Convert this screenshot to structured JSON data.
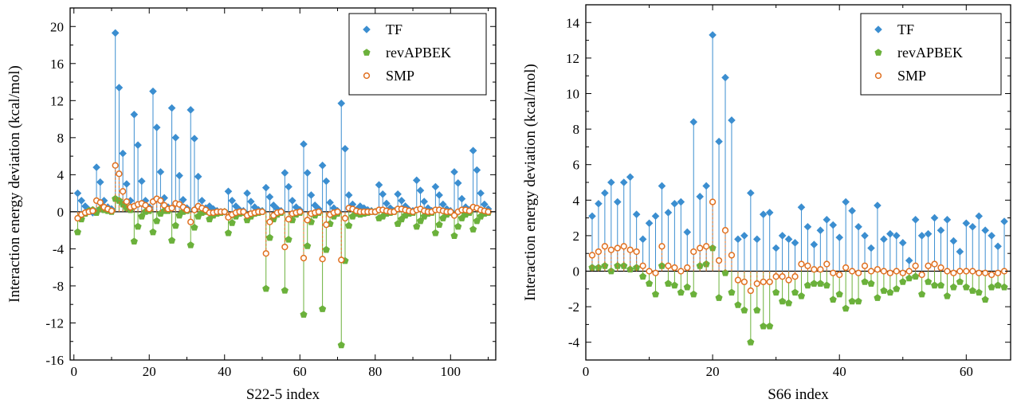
{
  "chart_data": [
    {
      "type": "scatter",
      "xlabel": "S22-5 index",
      "ylabel": "Interaction energy deviation (kcal/mol)",
      "xlim": [
        -1,
        112
      ],
      "ylim": [
        -16,
        22
      ],
      "xticks": [
        0,
        20,
        40,
        60,
        80,
        100
      ],
      "yticks": [
        -16,
        -12,
        -8,
        -4,
        0,
        4,
        8,
        12,
        16,
        20
      ],
      "legend_position": "top-right",
      "grid": false,
      "zero_line": true,
      "series": [
        {
          "name": "TF",
          "marker": "diamond",
          "color": "#3b8ed0",
          "stem": "solid",
          "x": [
            1,
            2,
            3,
            4,
            5,
            6,
            7,
            8,
            9,
            10,
            11,
            12,
            13,
            14,
            15,
            16,
            17,
            18,
            19,
            20,
            21,
            22,
            23,
            24,
            25,
            26,
            27,
            28,
            29,
            30,
            31,
            32,
            33,
            34,
            35,
            36,
            37,
            38,
            39,
            40,
            41,
            42,
            43,
            44,
            45,
            46,
            47,
            48,
            49,
            50,
            51,
            52,
            53,
            54,
            55,
            56,
            57,
            58,
            59,
            60,
            61,
            62,
            63,
            64,
            65,
            66,
            67,
            68,
            69,
            70,
            71,
            72,
            73,
            74,
            75,
            76,
            77,
            78,
            79,
            80,
            81,
            82,
            83,
            84,
            85,
            86,
            87,
            88,
            89,
            90,
            91,
            92,
            93,
            94,
            95,
            96,
            97,
            98,
            99,
            100,
            101,
            102,
            103,
            104,
            105,
            106,
            107,
            108,
            109,
            110
          ],
          "y": [
            2.0,
            1.2,
            0.6,
            0.2,
            -0.1,
            4.8,
            3.2,
            1.2,
            0.5,
            0.3,
            19.3,
            13.4,
            6.3,
            3.0,
            1.2,
            10.5,
            7.2,
            3.3,
            1.2,
            0.5,
            13.0,
            9.1,
            4.3,
            1.5,
            0.5,
            11.2,
            8.0,
            3.9,
            1.3,
            0.4,
            11.0,
            7.9,
            3.8,
            1.2,
            0.4,
            0.6,
            0.3,
            0.1,
            0.0,
            0.0,
            2.2,
            1.2,
            0.6,
            0.2,
            0.1,
            2.0,
            1.1,
            0.5,
            0.2,
            0.1,
            2.6,
            1.6,
            0.7,
            0.3,
            0.1,
            4.2,
            2.7,
            1.2,
            0.5,
            0.2,
            7.3,
            4.2,
            1.8,
            0.7,
            0.3,
            5.0,
            3.3,
            1.0,
            0.4,
            0.1,
            11.7,
            6.8,
            1.8,
            0.8,
            0.2,
            0.6,
            0.4,
            0.2,
            0.1,
            0.0,
            2.9,
            1.9,
            0.9,
            0.4,
            0.1,
            1.9,
            1.2,
            0.6,
            0.2,
            0.1,
            3.4,
            2.3,
            1.1,
            0.4,
            0.1,
            2.7,
            1.8,
            0.8,
            0.3,
            0.1,
            4.3,
            3.1,
            1.4,
            0.5,
            0.2,
            6.6,
            4.5,
            2.0,
            0.8,
            0.3
          ]
        },
        {
          "name": "revAPBEK",
          "marker": "pentagon",
          "color": "#6bb13b",
          "stem": "solid",
          "x": [
            1,
            2,
            3,
            4,
            5,
            6,
            7,
            8,
            9,
            10,
            11,
            12,
            13,
            14,
            15,
            16,
            17,
            18,
            19,
            20,
            21,
            22,
            23,
            24,
            25,
            26,
            27,
            28,
            29,
            30,
            31,
            32,
            33,
            34,
            35,
            36,
            37,
            38,
            39,
            40,
            41,
            42,
            43,
            44,
            45,
            46,
            47,
            48,
            49,
            50,
            51,
            52,
            53,
            54,
            55,
            56,
            57,
            58,
            59,
            60,
            61,
            62,
            63,
            64,
            65,
            66,
            67,
            68,
            69,
            70,
            71,
            72,
            73,
            74,
            75,
            76,
            77,
            78,
            79,
            80,
            81,
            82,
            83,
            84,
            85,
            86,
            87,
            88,
            89,
            90,
            91,
            92,
            93,
            94,
            95,
            96,
            97,
            98,
            99,
            100,
            101,
            102,
            103,
            104,
            105,
            106,
            107,
            108,
            109,
            110
          ],
          "y": [
            -2.2,
            -0.8,
            -0.2,
            0.1,
            0.2,
            -0.1,
            0.3,
            0.2,
            0.1,
            0.0,
            1.4,
            1.2,
            0.8,
            0.4,
            0.2,
            -3.2,
            -1.6,
            -0.5,
            0.0,
            0.1,
            -2.2,
            -1.0,
            -0.2,
            0.1,
            0.1,
            -3.1,
            -1.5,
            -0.4,
            0.0,
            0.1,
            -3.6,
            -1.7,
            -0.5,
            -0.1,
            0.0,
            -0.8,
            -0.4,
            -0.2,
            -0.1,
            0.0,
            -2.3,
            -1.2,
            -0.5,
            -0.2,
            -0.1,
            -0.9,
            -0.5,
            -0.2,
            -0.1,
            0.0,
            -8.3,
            -2.8,
            -0.8,
            -0.3,
            -0.1,
            -8.5,
            -3.0,
            -0.9,
            -0.3,
            -0.1,
            -11.1,
            -3.7,
            -1.1,
            -0.4,
            -0.1,
            -10.5,
            -4.1,
            -1.3,
            -0.5,
            -0.2,
            -14.4,
            -5.3,
            -1.5,
            -0.5,
            -0.2,
            -0.3,
            -0.2,
            -0.1,
            0.0,
            0.0,
            -0.7,
            -0.5,
            -0.2,
            -0.1,
            0.0,
            -1.3,
            -0.8,
            -0.4,
            -0.2,
            -0.1,
            -1.6,
            -1.0,
            -0.5,
            -0.2,
            -0.1,
            -2.3,
            -1.4,
            -0.7,
            -0.3,
            -0.1,
            -2.6,
            -1.6,
            -0.7,
            -0.3,
            -0.1,
            -1.9,
            -1.0,
            -0.5,
            -0.2,
            -0.1
          ]
        },
        {
          "name": "SMP",
          "marker": "circle-open",
          "color": "#e07020",
          "stem": "dashed",
          "x": [
            1,
            2,
            3,
            4,
            5,
            6,
            7,
            8,
            9,
            10,
            11,
            12,
            13,
            14,
            15,
            16,
            17,
            18,
            19,
            20,
            21,
            22,
            23,
            24,
            25,
            26,
            27,
            28,
            29,
            30,
            31,
            32,
            33,
            34,
            35,
            36,
            37,
            38,
            39,
            40,
            41,
            42,
            43,
            44,
            45,
            46,
            47,
            48,
            49,
            50,
            51,
            52,
            53,
            54,
            55,
            56,
            57,
            58,
            59,
            60,
            61,
            62,
            63,
            64,
            65,
            66,
            67,
            68,
            69,
            70,
            71,
            72,
            73,
            74,
            75,
            76,
            77,
            78,
            79,
            80,
            81,
            82,
            83,
            84,
            85,
            86,
            87,
            88,
            89,
            90,
            91,
            92,
            93,
            94,
            95,
            96,
            97,
            98,
            99,
            100,
            101,
            102,
            103,
            104,
            105,
            106,
            107,
            108,
            109,
            110
          ],
          "y": [
            -0.7,
            -0.3,
            -0.1,
            0.0,
            0.1,
            1.2,
            1.0,
            0.5,
            0.3,
            0.1,
            5.0,
            4.1,
            2.2,
            1.1,
            0.5,
            0.6,
            0.8,
            0.9,
            0.7,
            0.3,
            1.1,
            1.4,
            1.2,
            0.7,
            0.3,
            0.4,
            0.9,
            0.8,
            0.5,
            0.2,
            -1.1,
            0.2,
            0.6,
            0.4,
            0.2,
            -0.1,
            -0.1,
            0.0,
            0.0,
            0.0,
            -0.6,
            -0.3,
            -0.1,
            0.0,
            0.0,
            -0.4,
            -0.2,
            -0.1,
            0.0,
            0.0,
            -4.5,
            -1.1,
            -0.4,
            -0.1,
            0.0,
            -3.8,
            -0.8,
            -0.2,
            -0.1,
            0.0,
            -5.0,
            -0.9,
            -0.2,
            -0.1,
            0.0,
            -5.1,
            -1.4,
            -0.3,
            -0.1,
            0.0,
            -5.2,
            -0.7,
            0.4,
            0.3,
            0.1,
            0.0,
            0.0,
            0.0,
            0.0,
            0.0,
            0.2,
            0.2,
            0.1,
            0.0,
            0.0,
            0.3,
            0.3,
            0.2,
            0.1,
            0.0,
            0.2,
            0.3,
            0.1,
            0.0,
            0.0,
            0.2,
            0.2,
            0.1,
            0.0,
            0.0,
            -0.4,
            0.0,
            0.2,
            0.2,
            0.1,
            0.5,
            0.4,
            0.2,
            0.1,
            0.0
          ]
        }
      ]
    },
    {
      "type": "scatter",
      "xlabel": "S66 index",
      "ylabel": "Interaction energy deviation (kcal/mol)",
      "xlim": [
        0,
        67
      ],
      "ylim": [
        -5,
        15
      ],
      "xticks": [
        0,
        20,
        40,
        60
      ],
      "yticks": [
        -4,
        -2,
        0,
        2,
        4,
        6,
        8,
        10,
        12,
        14
      ],
      "legend_position": "top-right",
      "grid": false,
      "zero_line": true,
      "series": [
        {
          "name": "TF",
          "marker": "diamond",
          "color": "#3b8ed0",
          "stem": "solid",
          "x": [
            1,
            2,
            3,
            4,
            5,
            6,
            7,
            8,
            9,
            10,
            11,
            12,
            13,
            14,
            15,
            16,
            17,
            18,
            19,
            20,
            21,
            22,
            23,
            24,
            25,
            26,
            27,
            28,
            29,
            30,
            31,
            32,
            33,
            34,
            35,
            36,
            37,
            38,
            39,
            40,
            41,
            42,
            43,
            44,
            45,
            46,
            47,
            48,
            49,
            50,
            51,
            52,
            53,
            54,
            55,
            56,
            57,
            58,
            59,
            60,
            61,
            62,
            63,
            64,
            65,
            66
          ],
          "y": [
            3.1,
            3.8,
            4.4,
            5.0,
            3.9,
            5.0,
            5.3,
            3.2,
            1.8,
            2.7,
            3.1,
            4.8,
            3.3,
            3.8,
            3.9,
            2.2,
            8.4,
            4.2,
            4.8,
            13.3,
            7.3,
            10.9,
            8.5,
            1.8,
            2.0,
            4.4,
            1.8,
            3.2,
            3.3,
            1.3,
            2.0,
            1.8,
            1.6,
            3.6,
            2.5,
            1.5,
            2.3,
            2.9,
            2.6,
            1.9,
            3.9,
            3.4,
            2.5,
            2.0,
            1.3,
            3.7,
            1.8,
            2.1,
            2.0,
            1.6,
            0.6,
            2.9,
            2.0,
            2.1,
            3.0,
            2.3,
            2.9,
            1.7,
            1.1,
            2.7,
            2.5,
            3.1,
            2.3,
            2.0,
            1.4,
            2.8
          ]
        },
        {
          "name": "revAPBEK",
          "marker": "pentagon",
          "color": "#6bb13b",
          "stem": "solid",
          "x": [
            1,
            2,
            3,
            4,
            5,
            6,
            7,
            8,
            9,
            10,
            11,
            12,
            13,
            14,
            15,
            16,
            17,
            18,
            19,
            20,
            21,
            22,
            23,
            24,
            25,
            26,
            27,
            28,
            29,
            30,
            31,
            32,
            33,
            34,
            35,
            36,
            37,
            38,
            39,
            40,
            41,
            42,
            43,
            44,
            45,
            46,
            47,
            48,
            49,
            50,
            51,
            52,
            53,
            54,
            55,
            56,
            57,
            58,
            59,
            60,
            61,
            62,
            63,
            64,
            65,
            66
          ],
          "y": [
            0.2,
            0.2,
            0.3,
            0.0,
            0.3,
            0.3,
            0.1,
            0.2,
            -0.3,
            -0.7,
            -1.3,
            0.3,
            -0.7,
            -0.8,
            -1.2,
            -0.9,
            -1.3,
            0.3,
            0.4,
            1.3,
            -1.5,
            -0.1,
            -1.2,
            -1.9,
            -2.2,
            -4.0,
            -2.2,
            -3.1,
            -3.1,
            -1.2,
            -1.7,
            -1.8,
            -1.2,
            -1.4,
            -0.8,
            -0.7,
            -0.7,
            -0.8,
            -1.6,
            -1.3,
            -2.1,
            -1.7,
            -1.7,
            -0.6,
            -0.7,
            -1.5,
            -1.1,
            -1.2,
            -1.0,
            -0.6,
            -0.4,
            -0.3,
            -1.3,
            -0.6,
            -0.8,
            -0.8,
            -1.4,
            -0.9,
            -0.6,
            -0.9,
            -1.1,
            -1.2,
            -1.6,
            -0.9,
            -0.8,
            -0.9
          ]
        },
        {
          "name": "SMP",
          "marker": "circle-open",
          "color": "#e07020",
          "stem": "dashed",
          "x": [
            1,
            2,
            3,
            4,
            5,
            6,
            7,
            8,
            9,
            10,
            11,
            12,
            13,
            14,
            15,
            16,
            17,
            18,
            19,
            20,
            21,
            22,
            23,
            24,
            25,
            26,
            27,
            28,
            29,
            30,
            31,
            32,
            33,
            34,
            35,
            36,
            37,
            38,
            39,
            40,
            41,
            42,
            43,
            44,
            45,
            46,
            47,
            48,
            49,
            50,
            51,
            52,
            53,
            54,
            55,
            56,
            57,
            58,
            59,
            60,
            61,
            62,
            63,
            64,
            65,
            66
          ],
          "y": [
            0.9,
            1.1,
            1.4,
            1.2,
            1.3,
            1.4,
            1.2,
            1.1,
            0.3,
            0.0,
            -0.1,
            1.4,
            0.3,
            0.2,
            0.0,
            0.2,
            1.1,
            1.3,
            1.4,
            3.9,
            0.6,
            2.3,
            0.9,
            -0.5,
            -0.6,
            -1.1,
            -0.7,
            -0.6,
            -0.6,
            -0.3,
            -0.3,
            -0.5,
            -0.3,
            0.4,
            0.3,
            0.1,
            0.1,
            0.4,
            -0.1,
            -0.2,
            0.2,
            0.0,
            -0.1,
            0.3,
            0.0,
            0.1,
            0.0,
            -0.1,
            0.0,
            -0.1,
            0.0,
            0.3,
            -0.2,
            0.3,
            0.4,
            0.2,
            0.0,
            -0.1,
            0.0,
            0.0,
            0.0,
            -0.1,
            -0.1,
            -0.2,
            -0.1,
            0.0
          ]
        }
      ]
    }
  ]
}
